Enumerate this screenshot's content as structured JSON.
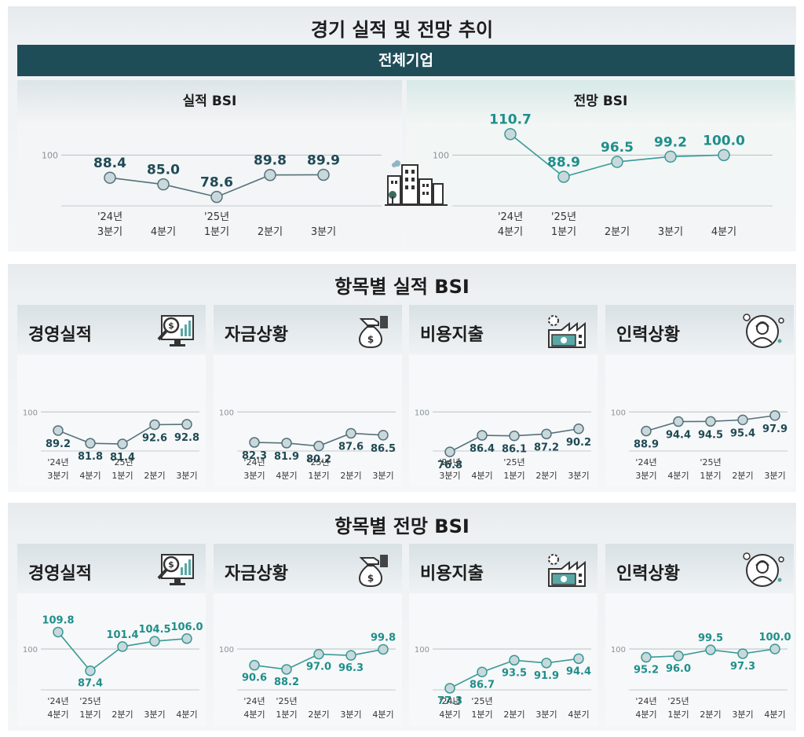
{
  "header": {
    "title": "경기 실적 및 전망 추이",
    "banner": "전체기업",
    "actual_section_title": "항목별 실적 BSI",
    "forecast_section_title": "항목별 전망 BSI"
  },
  "ref_label": "100",
  "colors": {
    "actual_line": "#56717b",
    "actual_value": "#1f4a55",
    "forecast_line": "#3a9a98",
    "forecast_value": "#1f8f8b",
    "point_fill": "#c9d8db",
    "ref_line": "#b8bfc2",
    "banner": "#1e4d58"
  },
  "icons": {
    "center": "city-buildings-icon",
    "경영실적": "monitor-magnifier-dollar-icon",
    "자금상황": "money-bag-hand-icon",
    "비용지출": "factory-gear-cash-icon",
    "인력상황": "worker-avatar-icon"
  },
  "chart_data": [
    {
      "id": "top-actual",
      "type": "line",
      "title": "실적 BSI",
      "categories": [
        [
          "'24년",
          "3분기"
        ],
        [
          "",
          "4분기"
        ],
        [
          "'25년",
          "1분기"
        ],
        [
          "",
          "2분기"
        ],
        [
          "",
          "3분기"
        ]
      ],
      "values": [
        88.4,
        85.0,
        78.6,
        89.8,
        89.9
      ],
      "value_labels": [
        "88.4",
        "85.0",
        "78.6",
        "89.8",
        "89.9"
      ],
      "ylim": [
        70,
        115
      ],
      "reference": 100
    },
    {
      "id": "top-forecast",
      "type": "line",
      "title": "전망 BSI",
      "categories": [
        [
          "'24년",
          "4분기"
        ],
        [
          "'25년",
          "1분기"
        ],
        [
          "",
          "2분기"
        ],
        [
          "",
          "3분기"
        ],
        [
          "",
          "4분기"
        ]
      ],
      "values": [
        110.7,
        88.9,
        96.5,
        99.2,
        100.0
      ],
      "value_labels": [
        "110.7",
        "88.9",
        "96.5",
        "99.2",
        "100.0"
      ],
      "ylim": [
        70,
        115
      ],
      "reference": 100
    },
    {
      "id": "actual-management",
      "type": "line",
      "title": "경영실적",
      "categories": [
        [
          "'24년",
          "3분기"
        ],
        [
          "",
          "4분기"
        ],
        [
          "'25년",
          "1분기"
        ],
        [
          "",
          "2분기"
        ],
        [
          "",
          "3분기"
        ]
      ],
      "values": [
        89.2,
        81.8,
        81.4,
        92.6,
        92.8
      ],
      "value_labels": [
        "89.2",
        "81.8",
        "81.4",
        "92.6",
        "92.8"
      ],
      "ylim": [
        70,
        112
      ],
      "reference": 100
    },
    {
      "id": "actual-funding",
      "type": "line",
      "title": "자금상황",
      "categories": [
        [
          "'24년",
          "3분기"
        ],
        [
          "",
          "4분기"
        ],
        [
          "'25년",
          "1분기"
        ],
        [
          "",
          "2분기"
        ],
        [
          "",
          "3분기"
        ]
      ],
      "values": [
        82.3,
        81.9,
        80.2,
        87.6,
        86.5
      ],
      "value_labels": [
        "82.3",
        "81.9",
        "80.2",
        "87.6",
        "86.5"
      ],
      "ylim": [
        70,
        112
      ],
      "reference": 100
    },
    {
      "id": "actual-cost",
      "type": "line",
      "title": "비용지출",
      "categories": [
        [
          "'24년",
          "3분기"
        ],
        [
          "",
          "4분기"
        ],
        [
          "'25년",
          "1분기"
        ],
        [
          "",
          "2분기"
        ],
        [
          "",
          "3분기"
        ]
      ],
      "values": [
        76.8,
        86.4,
        86.1,
        87.2,
        90.2
      ],
      "value_labels": [
        "76.8",
        "86.4",
        "86.1",
        "87.2",
        "90.2"
      ],
      "ylim": [
        70,
        112
      ],
      "reference": 100
    },
    {
      "id": "actual-workforce",
      "type": "line",
      "title": "인력상황",
      "categories": [
        [
          "'24년",
          "3분기"
        ],
        [
          "",
          "4분기"
        ],
        [
          "'25년",
          "1분기"
        ],
        [
          "",
          "2분기"
        ],
        [
          "",
          "3분기"
        ]
      ],
      "values": [
        88.9,
        94.4,
        94.5,
        95.4,
        97.9
      ],
      "value_labels": [
        "88.9",
        "94.4",
        "94.5",
        "95.4",
        "97.9"
      ],
      "ylim": [
        70,
        112
      ],
      "reference": 100
    },
    {
      "id": "forecast-management",
      "type": "line",
      "title": "경영실적",
      "categories": [
        [
          "'24년",
          "4분기"
        ],
        [
          "'25년",
          "1분기"
        ],
        [
          "",
          "2분기"
        ],
        [
          "",
          "3분기"
        ],
        [
          "",
          "4분기"
        ]
      ],
      "values": [
        109.8,
        87.4,
        101.4,
        104.5,
        106.0
      ],
      "value_labels": [
        "109.8",
        "87.4",
        "101.4",
        "104.5",
        "106.0"
      ],
      "ylim": [
        70,
        120
      ],
      "reference": 100
    },
    {
      "id": "forecast-funding",
      "type": "line",
      "title": "자금상황",
      "categories": [
        [
          "'24년",
          "4분기"
        ],
        [
          "'25년",
          "1분기"
        ],
        [
          "",
          "2분기"
        ],
        [
          "",
          "3분기"
        ],
        [
          "",
          "4분기"
        ]
      ],
      "values": [
        90.6,
        88.2,
        97.0,
        96.3,
        99.8
      ],
      "value_labels": [
        "90.6",
        "88.2",
        "97.0",
        "96.3",
        "99.8"
      ],
      "ylim": [
        70,
        120
      ],
      "reference": 100
    },
    {
      "id": "forecast-cost",
      "type": "line",
      "title": "비용지출",
      "categories": [
        [
          "'24년",
          "4분기"
        ],
        [
          "'25년",
          "1분기"
        ],
        [
          "",
          "2분기"
        ],
        [
          "",
          "3분기"
        ],
        [
          "",
          "4분기"
        ]
      ],
      "values": [
        77.3,
        86.7,
        93.5,
        91.9,
        94.4
      ],
      "value_labels": [
        "77.3",
        "86.7",
        "93.5",
        "91.9",
        "94.4"
      ],
      "ylim": [
        70,
        120
      ],
      "reference": 100
    },
    {
      "id": "forecast-workforce",
      "type": "line",
      "title": "인력상황",
      "categories": [
        [
          "'24년",
          "4분기"
        ],
        [
          "'25년",
          "1분기"
        ],
        [
          "",
          "2분기"
        ],
        [
          "",
          "3분기"
        ],
        [
          "",
          "4분기"
        ]
      ],
      "values": [
        95.2,
        96.0,
        99.5,
        97.3,
        100.0
      ],
      "value_labels": [
        "95.2",
        "96.0",
        "99.5",
        "97.3",
        "100.0"
      ],
      "ylim": [
        70,
        120
      ],
      "reference": 100
    }
  ]
}
